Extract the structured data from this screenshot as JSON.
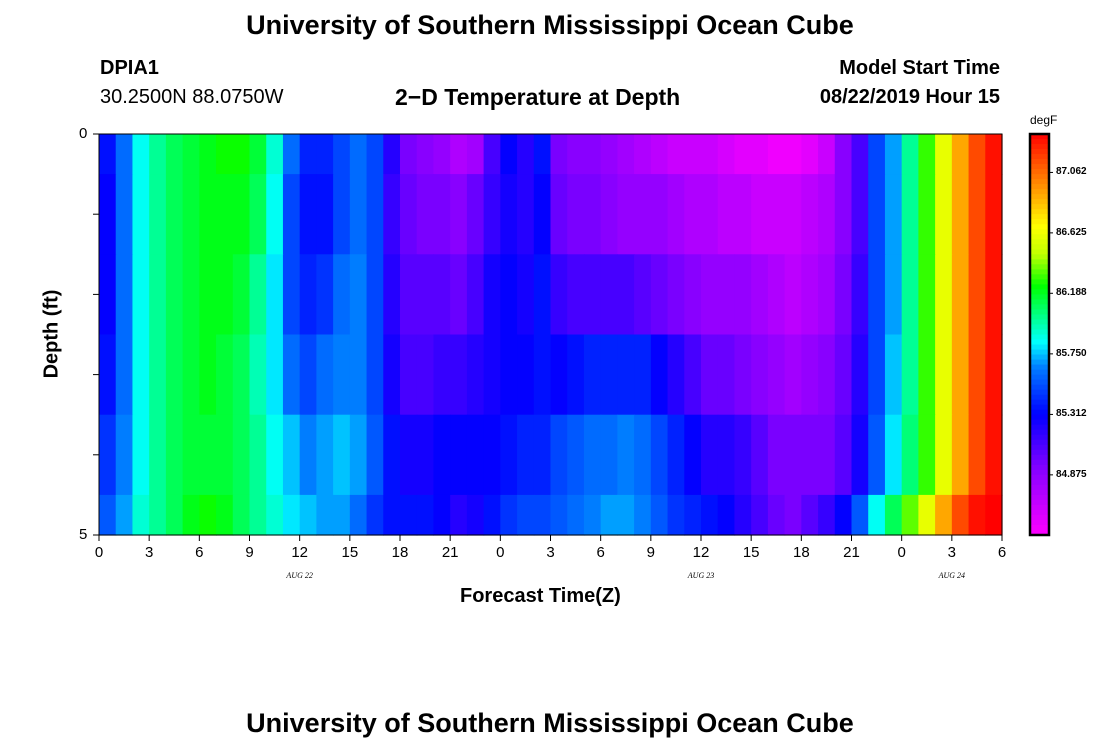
{
  "header": {
    "title": "University of Southern Mississippi Ocean Cube",
    "station_id": "DPIA1",
    "coords": "30.2500N 88.0750W",
    "chart_title": "2−D Temperature at Depth",
    "model_start_label": "Model Start Time",
    "model_start_value": "08/22/2019 Hour 15"
  },
  "footer": {
    "title": "University of Southern Mississippi Ocean Cube"
  },
  "chart_data": {
    "type": "heatmap",
    "title": "2−D Temperature at Depth",
    "xlabel": "Forecast Time(Z)",
    "ylabel": "Depth (ft)",
    "x_tick_labels": [
      "0",
      "3",
      "6",
      "9",
      "12",
      "15",
      "18",
      "21",
      "0",
      "3",
      "6",
      "9",
      "12",
      "15",
      "18",
      "21",
      "0",
      "3",
      "6"
    ],
    "date_labels": [
      {
        "label": "AUG 22",
        "hour": 12
      },
      {
        "label": "AUG 23",
        "hour": 36
      },
      {
        "label": "AUG 24",
        "hour": 51
      }
    ],
    "x_range_hours": [
      0,
      54
    ],
    "y_tick_labels": [
      "0",
      "5"
    ],
    "ylim": [
      0,
      5
    ],
    "colorbar": {
      "unit": "degF",
      "range": [
        84.44,
        87.34
      ],
      "tick_labels": [
        "87.062",
        "86.625",
        "86.188",
        "85.750",
        "85.312",
        "84.875"
      ],
      "tick_values": [
        87.062,
        86.625,
        86.188,
        85.75,
        85.312,
        84.875
      ]
    },
    "layers": [
      {
        "depth_from": 0.0,
        "depth_to": 0.5
      },
      {
        "depth_from": 0.5,
        "depth_to": 1.5
      },
      {
        "depth_from": 1.5,
        "depth_to": 2.5
      },
      {
        "depth_from": 2.5,
        "depth_to": 3.5
      },
      {
        "depth_from": 3.5,
        "depth_to": 4.5
      },
      {
        "depth_from": 4.5,
        "depth_to": 5.0
      }
    ],
    "hours": [
      0,
      1,
      2,
      3,
      4,
      5,
      6,
      7,
      8,
      9,
      10,
      11,
      12,
      13,
      14,
      15,
      16,
      17,
      18,
      19,
      20,
      21,
      22,
      23,
      24,
      25,
      26,
      27,
      28,
      29,
      30,
      31,
      32,
      33,
      34,
      35,
      36,
      37,
      38,
      39,
      40,
      41,
      42,
      43,
      44,
      45,
      46,
      47,
      48,
      49,
      50,
      51,
      52,
      53
    ],
    "values": [
      [
        85.35,
        85.6,
        85.85,
        86.0,
        86.1,
        86.15,
        86.2,
        86.25,
        86.25,
        86.15,
        85.9,
        85.6,
        85.4,
        85.4,
        85.5,
        85.6,
        85.5,
        85.2,
        84.95,
        84.9,
        84.85,
        84.75,
        84.8,
        85.1,
        85.3,
        85.2,
        85.35,
        84.95,
        84.9,
        84.9,
        84.85,
        84.8,
        84.75,
        84.7,
        84.65,
        84.65,
        84.65,
        84.6,
        84.55,
        84.55,
        84.5,
        84.5,
        84.55,
        84.65,
        84.9,
        85.1,
        85.5,
        85.7,
        86.0,
        86.3,
        86.6,
        86.9,
        87.15,
        87.3
      ],
      [
        85.3,
        85.6,
        85.85,
        86.0,
        86.1,
        86.15,
        86.2,
        86.2,
        86.2,
        86.1,
        85.85,
        85.5,
        85.35,
        85.35,
        85.5,
        85.6,
        85.5,
        85.15,
        85.0,
        84.95,
        84.95,
        84.9,
        85.0,
        85.15,
        85.25,
        85.2,
        85.3,
        85.0,
        84.95,
        84.95,
        84.9,
        84.85,
        84.85,
        84.85,
        84.8,
        84.75,
        84.75,
        84.7,
        84.7,
        84.65,
        84.65,
        84.65,
        84.7,
        84.75,
        84.9,
        85.1,
        85.5,
        85.7,
        86.0,
        86.3,
        86.6,
        86.9,
        87.15,
        87.3
      ],
      [
        85.3,
        85.6,
        85.85,
        86.0,
        86.1,
        86.15,
        86.2,
        86.2,
        86.15,
        86.0,
        85.8,
        85.5,
        85.4,
        85.45,
        85.6,
        85.65,
        85.5,
        85.2,
        85.05,
        85.05,
        85.05,
        85.0,
        85.1,
        85.25,
        85.3,
        85.25,
        85.35,
        85.15,
        85.1,
        85.1,
        85.1,
        85.1,
        85.05,
        85.0,
        84.95,
        84.9,
        84.85,
        84.85,
        84.85,
        84.8,
        84.75,
        84.7,
        84.75,
        84.8,
        84.95,
        85.15,
        85.5,
        85.7,
        86.0,
        86.3,
        86.6,
        86.9,
        87.15,
        87.3
      ],
      [
        85.35,
        85.6,
        85.85,
        86.0,
        86.1,
        86.15,
        86.2,
        86.15,
        86.1,
        85.95,
        85.8,
        85.6,
        85.5,
        85.6,
        85.65,
        85.65,
        85.5,
        85.25,
        85.1,
        85.1,
        85.15,
        85.15,
        85.2,
        85.25,
        85.3,
        85.3,
        85.35,
        85.3,
        85.35,
        85.4,
        85.4,
        85.4,
        85.4,
        85.3,
        85.2,
        85.1,
        85.0,
        85.0,
        84.95,
        84.9,
        84.85,
        84.8,
        84.85,
        84.9,
        85.0,
        85.2,
        85.5,
        85.75,
        86.0,
        86.3,
        86.6,
        86.9,
        87.15,
        87.3
      ],
      [
        85.45,
        85.65,
        85.85,
        86.0,
        86.1,
        86.15,
        86.15,
        86.15,
        86.1,
        86.0,
        85.85,
        85.75,
        85.65,
        85.7,
        85.75,
        85.7,
        85.55,
        85.35,
        85.25,
        85.25,
        85.3,
        85.3,
        85.3,
        85.3,
        85.35,
        85.4,
        85.4,
        85.5,
        85.55,
        85.6,
        85.6,
        85.65,
        85.6,
        85.5,
        85.4,
        85.3,
        85.2,
        85.2,
        85.15,
        85.05,
        84.95,
        84.95,
        84.95,
        84.95,
        85.05,
        85.25,
        85.55,
        85.8,
        86.05,
        86.3,
        86.6,
        86.9,
        87.15,
        87.3
      ],
      [
        85.55,
        85.7,
        85.9,
        86.0,
        86.1,
        86.2,
        86.25,
        86.2,
        86.1,
        86.0,
        85.9,
        85.8,
        85.75,
        85.7,
        85.7,
        85.6,
        85.45,
        85.35,
        85.35,
        85.35,
        85.3,
        85.2,
        85.25,
        85.35,
        85.45,
        85.5,
        85.5,
        85.55,
        85.6,
        85.65,
        85.7,
        85.7,
        85.65,
        85.55,
        85.45,
        85.4,
        85.35,
        85.3,
        85.2,
        85.1,
        85.0,
        84.95,
        85.05,
        85.15,
        85.3,
        85.55,
        85.85,
        86.1,
        86.35,
        86.6,
        86.9,
        87.15,
        87.3,
        87.35
      ]
    ]
  }
}
